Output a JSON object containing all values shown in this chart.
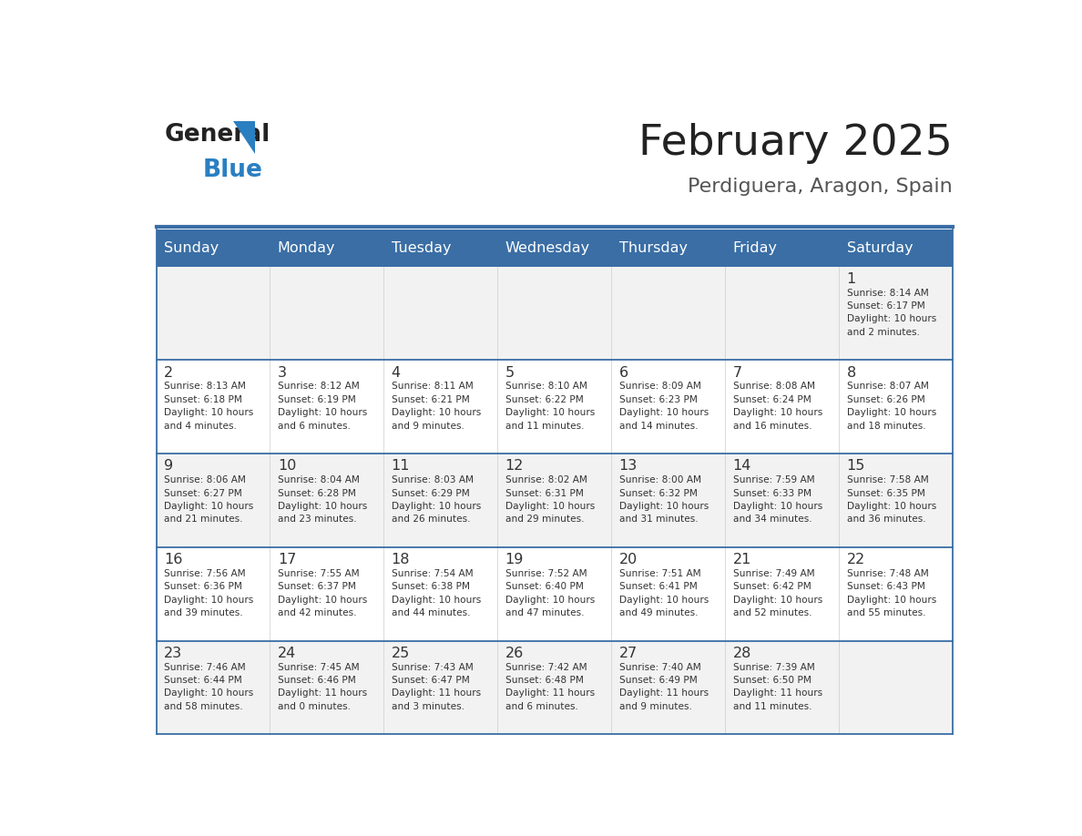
{
  "title": "February 2025",
  "subtitle": "Perdiguera, Aragon, Spain",
  "days_of_week": [
    "Sunday",
    "Monday",
    "Tuesday",
    "Wednesday",
    "Thursday",
    "Friday",
    "Saturday"
  ],
  "header_bg": "#3a6ea5",
  "header_text": "#ffffff",
  "row_bg_odd": "#f2f2f2",
  "row_bg_even": "#ffffff",
  "title_color": "#222222",
  "subtitle_color": "#555555",
  "day_number_color": "#333333",
  "cell_text_color": "#333333",
  "divider_color": "#3a6ea5",
  "logo_general_color": "#222222",
  "logo_blue_color": "#2a7fc1",
  "logo_triangle_color": "#2a7fc1",
  "weeks": [
    [
      {
        "day": null,
        "info": null
      },
      {
        "day": null,
        "info": null
      },
      {
        "day": null,
        "info": null
      },
      {
        "day": null,
        "info": null
      },
      {
        "day": null,
        "info": null
      },
      {
        "day": null,
        "info": null
      },
      {
        "day": 1,
        "info": "Sunrise: 8:14 AM\nSunset: 6:17 PM\nDaylight: 10 hours\nand 2 minutes."
      }
    ],
    [
      {
        "day": 2,
        "info": "Sunrise: 8:13 AM\nSunset: 6:18 PM\nDaylight: 10 hours\nand 4 minutes."
      },
      {
        "day": 3,
        "info": "Sunrise: 8:12 AM\nSunset: 6:19 PM\nDaylight: 10 hours\nand 6 minutes."
      },
      {
        "day": 4,
        "info": "Sunrise: 8:11 AM\nSunset: 6:21 PM\nDaylight: 10 hours\nand 9 minutes."
      },
      {
        "day": 5,
        "info": "Sunrise: 8:10 AM\nSunset: 6:22 PM\nDaylight: 10 hours\nand 11 minutes."
      },
      {
        "day": 6,
        "info": "Sunrise: 8:09 AM\nSunset: 6:23 PM\nDaylight: 10 hours\nand 14 minutes."
      },
      {
        "day": 7,
        "info": "Sunrise: 8:08 AM\nSunset: 6:24 PM\nDaylight: 10 hours\nand 16 minutes."
      },
      {
        "day": 8,
        "info": "Sunrise: 8:07 AM\nSunset: 6:26 PM\nDaylight: 10 hours\nand 18 minutes."
      }
    ],
    [
      {
        "day": 9,
        "info": "Sunrise: 8:06 AM\nSunset: 6:27 PM\nDaylight: 10 hours\nand 21 minutes."
      },
      {
        "day": 10,
        "info": "Sunrise: 8:04 AM\nSunset: 6:28 PM\nDaylight: 10 hours\nand 23 minutes."
      },
      {
        "day": 11,
        "info": "Sunrise: 8:03 AM\nSunset: 6:29 PM\nDaylight: 10 hours\nand 26 minutes."
      },
      {
        "day": 12,
        "info": "Sunrise: 8:02 AM\nSunset: 6:31 PM\nDaylight: 10 hours\nand 29 minutes."
      },
      {
        "day": 13,
        "info": "Sunrise: 8:00 AM\nSunset: 6:32 PM\nDaylight: 10 hours\nand 31 minutes."
      },
      {
        "day": 14,
        "info": "Sunrise: 7:59 AM\nSunset: 6:33 PM\nDaylight: 10 hours\nand 34 minutes."
      },
      {
        "day": 15,
        "info": "Sunrise: 7:58 AM\nSunset: 6:35 PM\nDaylight: 10 hours\nand 36 minutes."
      }
    ],
    [
      {
        "day": 16,
        "info": "Sunrise: 7:56 AM\nSunset: 6:36 PM\nDaylight: 10 hours\nand 39 minutes."
      },
      {
        "day": 17,
        "info": "Sunrise: 7:55 AM\nSunset: 6:37 PM\nDaylight: 10 hours\nand 42 minutes."
      },
      {
        "day": 18,
        "info": "Sunrise: 7:54 AM\nSunset: 6:38 PM\nDaylight: 10 hours\nand 44 minutes."
      },
      {
        "day": 19,
        "info": "Sunrise: 7:52 AM\nSunset: 6:40 PM\nDaylight: 10 hours\nand 47 minutes."
      },
      {
        "day": 20,
        "info": "Sunrise: 7:51 AM\nSunset: 6:41 PM\nDaylight: 10 hours\nand 49 minutes."
      },
      {
        "day": 21,
        "info": "Sunrise: 7:49 AM\nSunset: 6:42 PM\nDaylight: 10 hours\nand 52 minutes."
      },
      {
        "day": 22,
        "info": "Sunrise: 7:48 AM\nSunset: 6:43 PM\nDaylight: 10 hours\nand 55 minutes."
      }
    ],
    [
      {
        "day": 23,
        "info": "Sunrise: 7:46 AM\nSunset: 6:44 PM\nDaylight: 10 hours\nand 58 minutes."
      },
      {
        "day": 24,
        "info": "Sunrise: 7:45 AM\nSunset: 6:46 PM\nDaylight: 11 hours\nand 0 minutes."
      },
      {
        "day": 25,
        "info": "Sunrise: 7:43 AM\nSunset: 6:47 PM\nDaylight: 11 hours\nand 3 minutes."
      },
      {
        "day": 26,
        "info": "Sunrise: 7:42 AM\nSunset: 6:48 PM\nDaylight: 11 hours\nand 6 minutes."
      },
      {
        "day": 27,
        "info": "Sunrise: 7:40 AM\nSunset: 6:49 PM\nDaylight: 11 hours\nand 9 minutes."
      },
      {
        "day": 28,
        "info": "Sunrise: 7:39 AM\nSunset: 6:50 PM\nDaylight: 11 hours\nand 11 minutes."
      },
      {
        "day": null,
        "info": null
      }
    ]
  ]
}
